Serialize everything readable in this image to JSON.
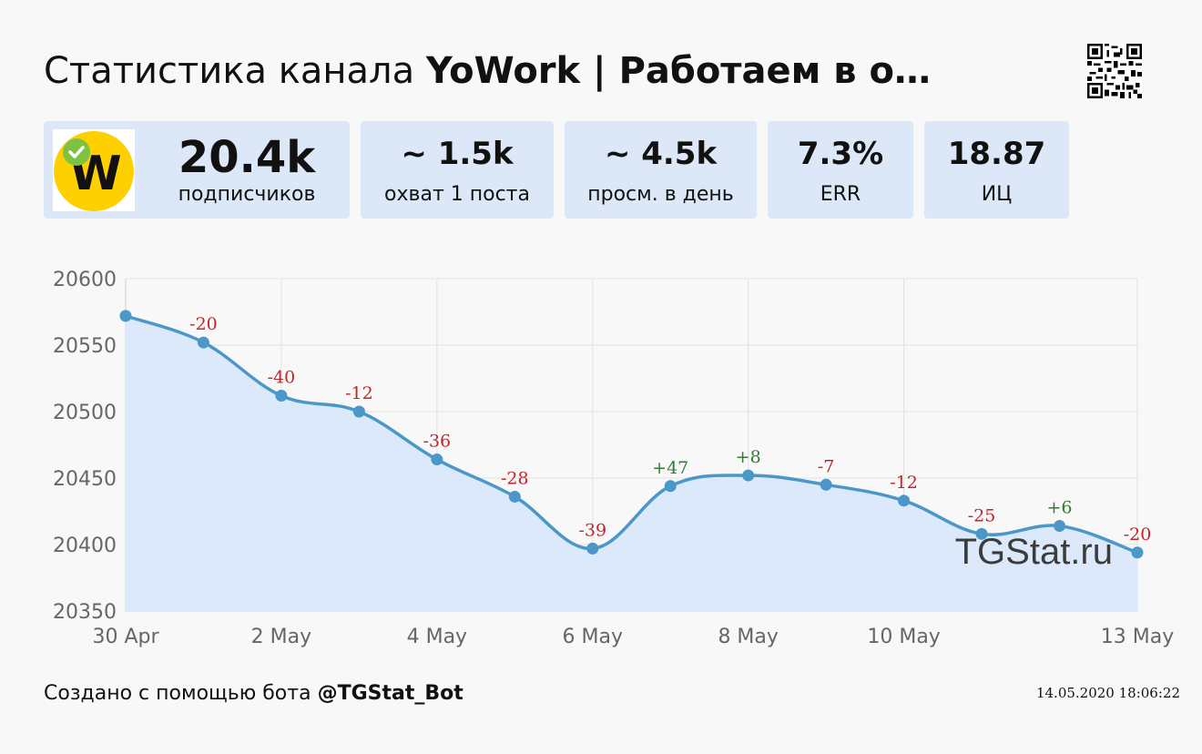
{
  "header": {
    "title_prefix": "Статистика канала ",
    "title_channel": "YoWork | Работаем в о…"
  },
  "cards": [
    {
      "value": "20.4k",
      "label": "подписчиков"
    },
    {
      "value": "~ 1.5k",
      "label": "охват 1 поста"
    },
    {
      "value": "~ 4.5k",
      "label": "просм. в день"
    },
    {
      "value": "7.3%",
      "label": "ERR"
    },
    {
      "value": "18.87",
      "label": "ИЦ"
    }
  ],
  "logo": {
    "letter": "W",
    "bg": "#ffd000",
    "badge": "#7ec242"
  },
  "chart_data": {
    "type": "area",
    "x": [
      "30 Apr",
      "1 May",
      "2 May",
      "3 May",
      "4 May",
      "5 May",
      "6 May",
      "7 May",
      "8 May",
      "9 May",
      "10 May",
      "11 May",
      "12 May",
      "13 May"
    ],
    "values": [
      20572,
      20552,
      20512,
      20500,
      20464,
      20436,
      20397,
      20444,
      20452,
      20445,
      20433,
      20408,
      20414,
      20394
    ],
    "deltas": [
      "",
      "-20",
      "-40",
      "-12",
      "-36",
      "-28",
      "-39",
      "+47",
      "+8",
      "-7",
      "-12",
      "-25",
      "+6",
      "-20"
    ],
    "x_tick_labels": [
      {
        "index": 0,
        "label": "30 Apr"
      },
      {
        "index": 2,
        "label": "2 May"
      },
      {
        "index": 4,
        "label": "4 May"
      },
      {
        "index": 6,
        "label": "6 May"
      },
      {
        "index": 8,
        "label": "8 May"
      },
      {
        "index": 10,
        "label": "10 May"
      },
      {
        "index": 13,
        "label": "13 May"
      }
    ],
    "y_ticks": [
      20600,
      20550,
      20500,
      20450,
      20400,
      20350
    ],
    "ylim": [
      20350,
      20600
    ],
    "grid": true,
    "line_color": "#4a97c8",
    "fill_color": "#dce9fa",
    "negative_color": "#c0262b",
    "positive_color": "#2f7d2f"
  },
  "watermark": "TGStat.ru",
  "footer": {
    "created_prefix": "Создано с помощью бота ",
    "bot_handle": "@TGStat_Bot",
    "timestamp": "14.05.2020 18:06:22"
  }
}
